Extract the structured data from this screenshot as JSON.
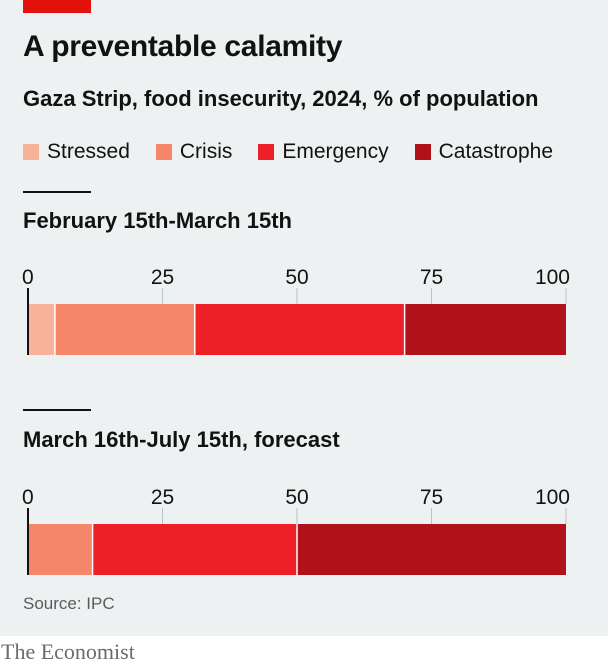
{
  "header": {
    "title": "A preventable calamity",
    "subtitle": "Gaza Strip, food insecurity, 2024, % of population"
  },
  "legend": [
    {
      "label": "Stressed",
      "color": "#f9b29a"
    },
    {
      "label": "Crisis",
      "color": "#f5866a"
    },
    {
      "label": "Emergency",
      "color": "#ee2027"
    },
    {
      "label": "Catastrophe",
      "color": "#b0111a"
    }
  ],
  "chart_data": [
    {
      "type": "bar",
      "orientation": "horizontal-stacked",
      "title": "February 15th-March 15th",
      "xlim": [
        0,
        100
      ],
      "ticks": [
        0,
        25,
        50,
        75,
        100
      ],
      "series": [
        {
          "name": "Stressed",
          "value": 5,
          "color": "#f9b29a"
        },
        {
          "name": "Crisis",
          "value": 26,
          "color": "#f5866a"
        },
        {
          "name": "Emergency",
          "value": 39,
          "color": "#ee2027"
        },
        {
          "name": "Catastrophe",
          "value": 30,
          "color": "#b0111a"
        }
      ]
    },
    {
      "type": "bar",
      "orientation": "horizontal-stacked",
      "title": "March 16th-July 15th, forecast",
      "xlim": [
        0,
        100
      ],
      "ticks": [
        0,
        25,
        50,
        75,
        100
      ],
      "series": [
        {
          "name": "Stressed",
          "value": 0,
          "color": "#f9b29a"
        },
        {
          "name": "Crisis",
          "value": 12,
          "color": "#f5866a"
        },
        {
          "name": "Emergency",
          "value": 38,
          "color": "#ee2027"
        },
        {
          "name": "Catastrophe",
          "value": 50,
          "color": "#b0111a"
        }
      ]
    }
  ],
  "footer": {
    "source": "Source: IPC",
    "brand": "The Economist"
  }
}
